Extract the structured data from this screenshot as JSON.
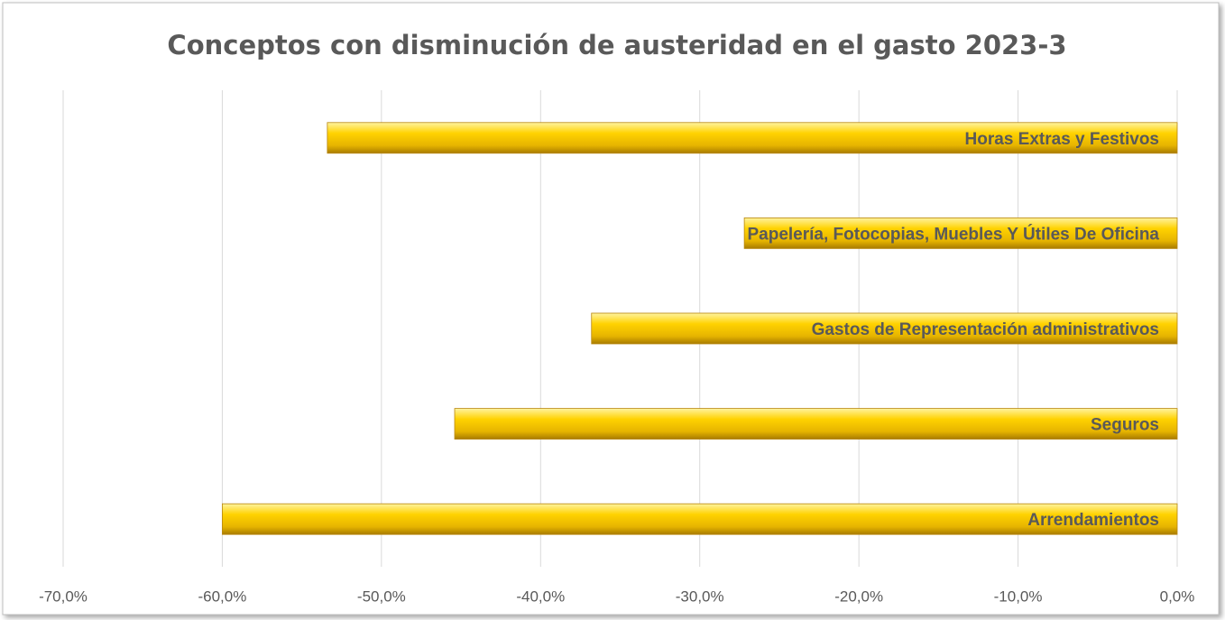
{
  "chart_data": {
    "type": "bar",
    "orientation": "horizontal",
    "title": "Conceptos con disminución de austeridad en el gasto 2023-3",
    "categories": [
      "Horas Extras y Festivos",
      "Papelería, Fotocopias, Muebles Y Útiles De Oficina",
      "Gastos de Representación administrativos",
      "Seguros",
      "Arrendamientos"
    ],
    "values": [
      -53.4,
      -27.2,
      -36.8,
      -45.4,
      -60
    ],
    "color": "#f2c200",
    "xlim": [
      -70,
      0
    ],
    "xticks": [
      {
        "value": -70,
        "label": "-70,0%"
      },
      {
        "value": -60,
        "label": "-60,0%"
      },
      {
        "value": -50,
        "label": "-50,0%"
      },
      {
        "value": -40,
        "label": "-40,0%"
      },
      {
        "value": -30,
        "label": "-30,0%"
      },
      {
        "value": -20,
        "label": "-20,0%"
      },
      {
        "value": -10,
        "label": "-10,0%"
      },
      {
        "value": 0,
        "label": "0,0%"
      }
    ],
    "grid": true
  }
}
